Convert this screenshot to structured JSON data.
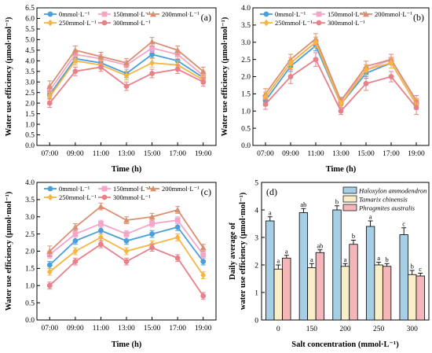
{
  "chart_data": [
    {
      "type": "line",
      "panel_label": "(a)",
      "xlabel": "Time (h)",
      "ylabel": "Water use efficiency (μmol·mol⁻¹)",
      "ylim": [
        0,
        6.5
      ],
      "yticks": [
        "0.0",
        "0.5",
        "1.0",
        "1.5",
        "2.0",
        "2.5",
        "3.0",
        "3.5",
        "4.0",
        "4.5",
        "5.0",
        "5.5",
        "6.0",
        "6.5"
      ],
      "categories": [
        "07:00",
        "09:00",
        "11:00",
        "13:00",
        "15:00",
        "17:00",
        "19:00"
      ],
      "legend_position": "top",
      "series": [
        {
          "name": "0mmol·L⁻¹",
          "color": "#4a9fd8",
          "marker": "circle",
          "values": [
            2.4,
            4.1,
            3.9,
            3.4,
            4.3,
            4.0,
            3.2
          ],
          "errors": [
            0.2,
            0.2,
            0.2,
            0.2,
            0.15,
            0.2,
            0.2
          ]
        },
        {
          "name": "150mmol·L⁻¹",
          "color": "#f4a6c8",
          "marker": "square",
          "values": [
            2.6,
            4.3,
            4.1,
            3.8,
            4.6,
            4.3,
            3.3
          ],
          "errors": [
            0.2,
            0.2,
            0.2,
            0.2,
            0.2,
            0.2,
            0.2
          ]
        },
        {
          "name": "200mmol·L⁻¹",
          "color": "#d98f70",
          "marker": "triangle",
          "values": [
            2.8,
            4.5,
            4.2,
            3.9,
            4.9,
            4.5,
            3.5
          ],
          "errors": [
            0.25,
            0.2,
            0.2,
            0.2,
            0.2,
            0.2,
            0.2
          ]
        },
        {
          "name": "250mmol·L⁻¹",
          "color": "#f7b544",
          "marker": "diamond",
          "values": [
            2.3,
            4.0,
            3.8,
            3.3,
            3.9,
            3.8,
            3.1
          ],
          "errors": [
            0.2,
            0.2,
            0.2,
            0.2,
            0.2,
            0.2,
            0.2
          ]
        },
        {
          "name": "300mmol·L⁻¹",
          "color": "#e8808a",
          "marker": "circle",
          "values": [
            2.0,
            3.5,
            3.7,
            2.8,
            3.4,
            3.6,
            3.0
          ],
          "errors": [
            0.2,
            0.2,
            0.2,
            0.2,
            0.2,
            0.2,
            0.2
          ]
        }
      ]
    },
    {
      "type": "line",
      "panel_label": "(b)",
      "xlabel": "Time (h)",
      "ylabel": "Water use efficiency (μmol·mol⁻¹)",
      "ylim": [
        0,
        4.0
      ],
      "yticks": [
        "0.0",
        "0.5",
        "1.0",
        "1.5",
        "2.0",
        "2.5",
        "3.0",
        "3.5",
        "4.0"
      ],
      "categories": [
        "07:00",
        "09:00",
        "11:00",
        "13:00",
        "15:00",
        "17:00",
        "19:00"
      ],
      "legend_position": "top",
      "series": [
        {
          "name": "0mmol·L⁻¹",
          "color": "#4a9fd8",
          "marker": "circle",
          "values": [
            1.3,
            2.3,
            2.9,
            1.2,
            2.1,
            2.4,
            1.2
          ],
          "errors": [
            0.15,
            0.15,
            0.15,
            0.1,
            0.15,
            0.15,
            0.15
          ]
        },
        {
          "name": "150mmol·L⁻¹",
          "color": "#f4a6c8",
          "marker": "square",
          "values": [
            1.4,
            2.4,
            3.0,
            1.3,
            2.2,
            2.5,
            1.3
          ],
          "errors": [
            0.15,
            0.15,
            0.15,
            0.1,
            0.15,
            0.15,
            0.15
          ]
        },
        {
          "name": "200mmol·L⁻¹",
          "color": "#d98f70",
          "marker": "triangle",
          "values": [
            1.5,
            2.5,
            3.1,
            1.3,
            2.3,
            2.5,
            1.3
          ],
          "errors": [
            0.15,
            0.15,
            0.15,
            0.1,
            0.15,
            0.15,
            0.15
          ]
        },
        {
          "name": "250mmol·L⁻¹",
          "color": "#f7b544",
          "marker": "diamond",
          "values": [
            1.4,
            2.4,
            3.0,
            1.2,
            2.2,
            2.4,
            1.2
          ],
          "errors": [
            0.15,
            0.15,
            0.15,
            0.1,
            0.15,
            0.15,
            0.15
          ]
        },
        {
          "name": "300mmol·L⁻¹",
          "color": "#e8808a",
          "marker": "circle",
          "values": [
            1.2,
            2.0,
            2.5,
            1.0,
            1.8,
            2.0,
            1.1
          ],
          "errors": [
            0.15,
            0.2,
            0.2,
            0.1,
            0.2,
            0.15,
            0.2
          ]
        }
      ]
    },
    {
      "type": "line",
      "panel_label": "(c)",
      "xlabel": "Time (h)",
      "ylabel": "Water use efficiency (μmol·mol⁻¹)",
      "ylim": [
        0,
        4.0
      ],
      "yticks": [
        "0.0",
        "0.5",
        "1.0",
        "1.5",
        "2.0",
        "2.5",
        "3.0",
        "3.5",
        "4.0"
      ],
      "categories": [
        "07:00",
        "09:00",
        "11:00",
        "13:00",
        "15:00",
        "17:00",
        "19:00"
      ],
      "legend_position": "top",
      "series": [
        {
          "name": "0mmol·L⁻¹",
          "color": "#4a9fd8",
          "marker": "circle",
          "values": [
            1.6,
            2.3,
            2.6,
            2.3,
            2.5,
            2.7,
            1.7
          ],
          "errors": [
            0.1,
            0.1,
            0.1,
            0.1,
            0.1,
            0.1,
            0.1
          ]
        },
        {
          "name": "150mmol·L⁻¹",
          "color": "#f4a6c8",
          "marker": "square",
          "values": [
            1.9,
            2.5,
            2.8,
            2.5,
            2.8,
            2.9,
            1.9
          ],
          "errors": [
            0.1,
            0.1,
            0.1,
            0.1,
            0.1,
            0.1,
            0.1
          ]
        },
        {
          "name": "200mmol·L⁻¹",
          "color": "#d98f70",
          "marker": "triangle",
          "values": [
            2.0,
            2.7,
            3.3,
            2.9,
            3.0,
            3.2,
            2.1
          ],
          "errors": [
            0.15,
            0.1,
            0.1,
            0.1,
            0.1,
            0.1,
            0.1
          ]
        },
        {
          "name": "250mmol·L⁻¹",
          "color": "#f7b544",
          "marker": "diamond",
          "values": [
            1.4,
            2.0,
            2.4,
            2.0,
            2.2,
            2.4,
            1.3
          ],
          "errors": [
            0.1,
            0.1,
            0.1,
            0.1,
            0.1,
            0.1,
            0.1
          ]
        },
        {
          "name": "300mmol·L⁻¹",
          "color": "#e8808a",
          "marker": "circle",
          "values": [
            1.0,
            1.7,
            2.2,
            1.7,
            2.1,
            1.8,
            0.7
          ],
          "errors": [
            0.1,
            0.1,
            0.1,
            0.1,
            0.1,
            0.1,
            0.1
          ]
        }
      ]
    },
    {
      "type": "bar",
      "panel_label": "(d)",
      "xlabel": "Salt concentration (mmol·L⁻¹)",
      "ylabel_line1": "Daily average of",
      "ylabel_line2": "water use efficiency (μmol·mol⁻¹)",
      "ylim": [
        0,
        5
      ],
      "yticks": [
        "0",
        "1",
        "2",
        "3",
        "4",
        "5"
      ],
      "categories": [
        "0",
        "150",
        "200",
        "250",
        "300"
      ],
      "legend_position": "top-right",
      "series": [
        {
          "name": "Haloxylon ammodendron",
          "color": "#a6cfe6",
          "values": [
            3.6,
            3.9,
            4.0,
            3.4,
            3.1
          ],
          "errors": [
            0.15,
            0.15,
            0.15,
            0.2,
            0.25
          ],
          "labels": [
            "a",
            "ab",
            "b",
            "a",
            "c"
          ]
        },
        {
          "name": "Tamarix chinensis",
          "color": "#faeec8",
          "values": [
            1.85,
            1.9,
            1.95,
            2.0,
            1.65
          ],
          "errors": [
            0.15,
            0.15,
            0.1,
            0.1,
            0.15
          ],
          "labels": [
            "a",
            "a",
            "a",
            "a",
            "b"
          ]
        },
        {
          "name": "Phragmites australis",
          "color": "#f4b6b8",
          "values": [
            2.25,
            2.45,
            2.75,
            1.95,
            1.6
          ],
          "errors": [
            0.1,
            0.1,
            0.15,
            0.1,
            0.1
          ],
          "labels": [
            "a",
            "ab",
            "b",
            "b",
            "c"
          ]
        }
      ]
    }
  ]
}
